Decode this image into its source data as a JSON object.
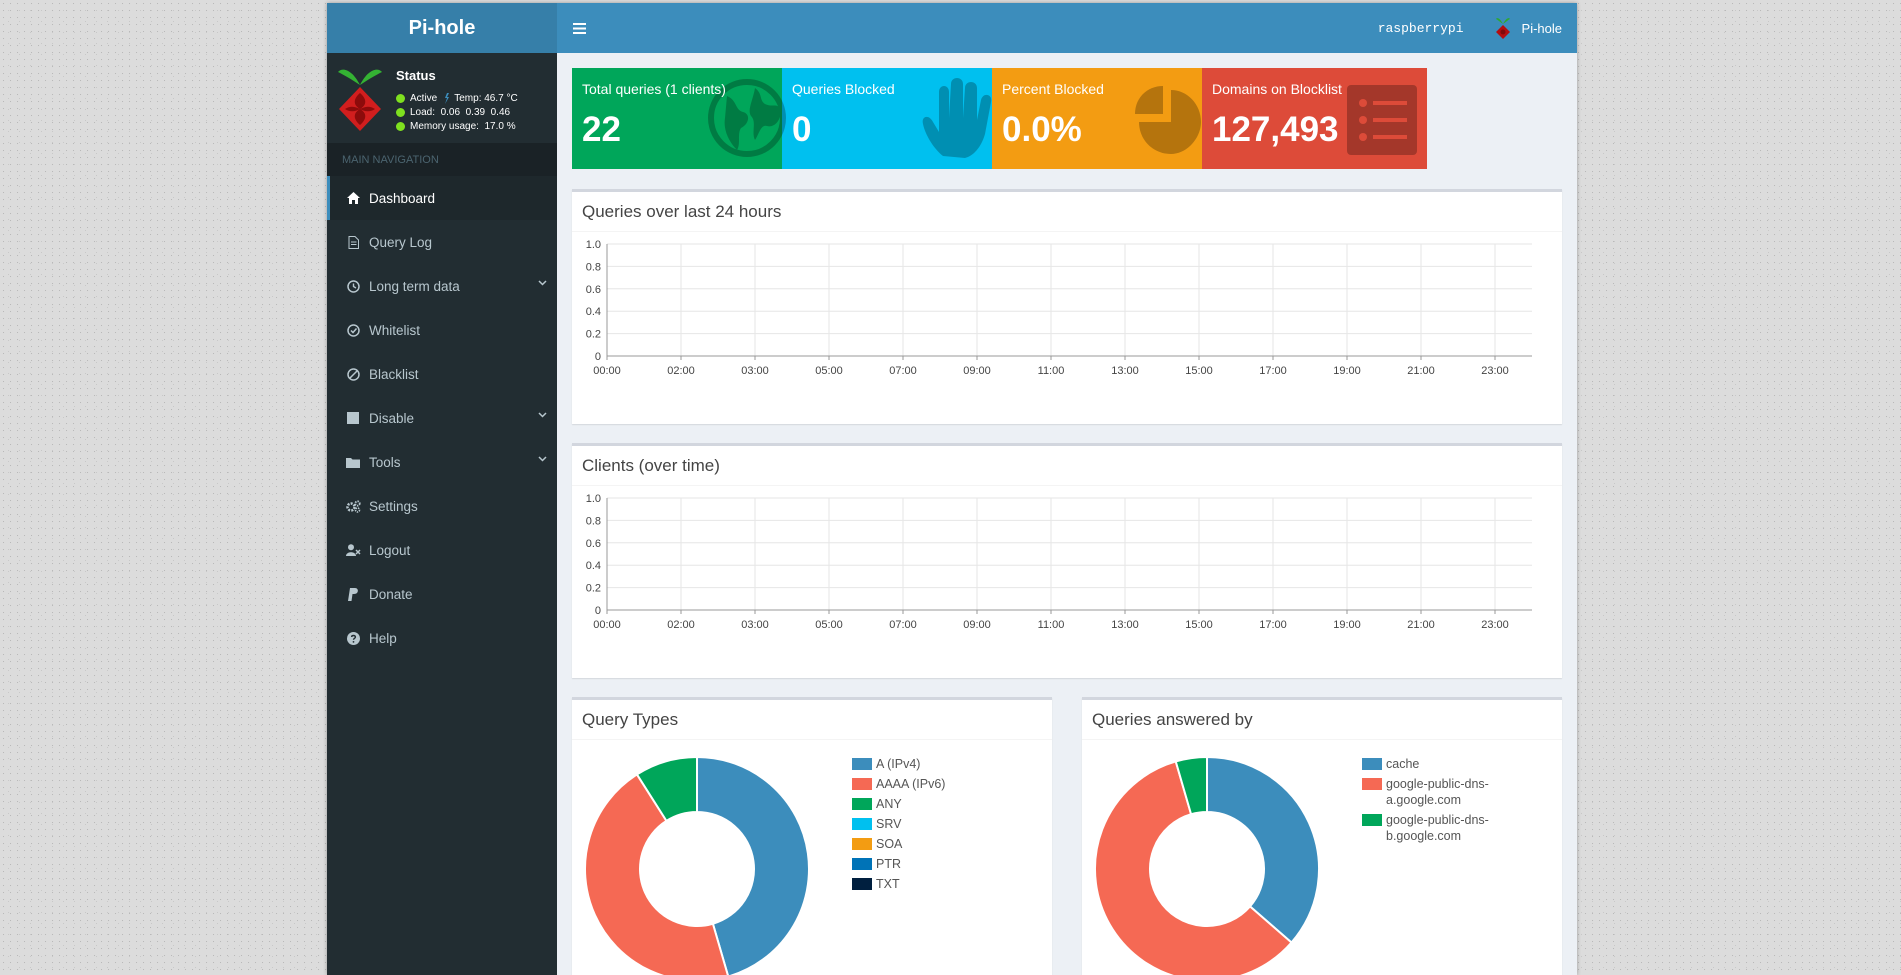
{
  "app": {
    "logo_text": "Pi-hole",
    "hostname": "raspberrypi",
    "user_label": "Pi-hole"
  },
  "status": {
    "title": "Status",
    "active": "Active",
    "temp": "Temp: 46.7 °C",
    "load": "Load:  0.06  0.39  0.46",
    "memory": "Memory usage:  17.0 %"
  },
  "sidebar": {
    "header": "MAIN NAVIGATION",
    "items": [
      {
        "label": "Dashboard",
        "icon": "home-icon",
        "active": true
      },
      {
        "label": "Query Log",
        "icon": "file-icon"
      },
      {
        "label": "Long term data",
        "icon": "history-icon",
        "has_children": true
      },
      {
        "label": "Whitelist",
        "icon": "check-circle-icon"
      },
      {
        "label": "Blacklist",
        "icon": "ban-icon"
      },
      {
        "label": "Disable",
        "icon": "stop-icon",
        "has_children": true
      },
      {
        "label": "Tools",
        "icon": "folder-icon",
        "has_children": true
      },
      {
        "label": "Settings",
        "icon": "gears-icon"
      },
      {
        "label": "Logout",
        "icon": "user-times-icon"
      },
      {
        "label": "Donate",
        "icon": "paypal-icon"
      },
      {
        "label": "Help",
        "icon": "question-circle-icon"
      }
    ]
  },
  "stats": [
    {
      "label": "Total queries (1 clients)",
      "value": "22",
      "color": "#00a65a",
      "icon": "globe-icon"
    },
    {
      "label": "Queries Blocked",
      "value": "0",
      "color": "#00c0ef",
      "icon": "hand-icon"
    },
    {
      "label": "Percent Blocked",
      "value": "0.0%",
      "color": "#f39c12",
      "icon": "pie-chart-icon"
    },
    {
      "label": "Domains on Blocklist",
      "value": "127,493",
      "color": "#dd4b39",
      "icon": "list-icon"
    }
  ],
  "panels": {
    "queries_title": "Queries over last 24 hours",
    "clients_title": "Clients (over time)",
    "query_types_title": "Query Types",
    "answered_by_title": "Queries answered by"
  },
  "chart_data": [
    {
      "type": "line",
      "title": "Queries over last 24 hours",
      "x": [
        "00:00",
        "02:00",
        "03:00",
        "05:00",
        "07:00",
        "09:00",
        "11:00",
        "13:00",
        "15:00",
        "17:00",
        "19:00",
        "21:00",
        "23:00"
      ],
      "y_ticks": [
        "0",
        "0.2",
        "0.4",
        "0.6",
        "0.8",
        "1.0"
      ],
      "ylim": [
        0,
        1
      ],
      "series": []
    },
    {
      "type": "line",
      "title": "Clients (over time)",
      "x": [
        "00:00",
        "02:00",
        "03:00",
        "05:00",
        "07:00",
        "09:00",
        "11:00",
        "13:00",
        "15:00",
        "17:00",
        "19:00",
        "21:00",
        "23:00"
      ],
      "y_ticks": [
        "0",
        "0.2",
        "0.4",
        "0.6",
        "0.8",
        "1.0"
      ],
      "ylim": [
        0,
        1
      ],
      "series": []
    },
    {
      "type": "pie",
      "title": "Query Types",
      "legend": [
        {
          "label": "A (IPv4)",
          "color": "#3c8dbc"
        },
        {
          "label": "AAAA (IPv6)",
          "color": "#f56954"
        },
        {
          "label": "ANY",
          "color": "#00a65a"
        },
        {
          "label": "SRV",
          "color": "#00c0ef"
        },
        {
          "label": "SOA",
          "color": "#f39c12"
        },
        {
          "label": "PTR",
          "color": "#0073b7"
        },
        {
          "label": "TXT",
          "color": "#001f3f"
        }
      ],
      "values": [
        45.5,
        45.5,
        9.0,
        0,
        0,
        0,
        0
      ]
    },
    {
      "type": "pie",
      "title": "Queries answered by",
      "legend": [
        {
          "label": "cache",
          "color": "#3c8dbc"
        },
        {
          "label": "google-public-dns-a.google.com",
          "color": "#f56954"
        },
        {
          "label": "google-public-dns-b.google.com",
          "color": "#00a65a"
        }
      ],
      "values": [
        36.4,
        59.1,
        4.5
      ]
    }
  ]
}
